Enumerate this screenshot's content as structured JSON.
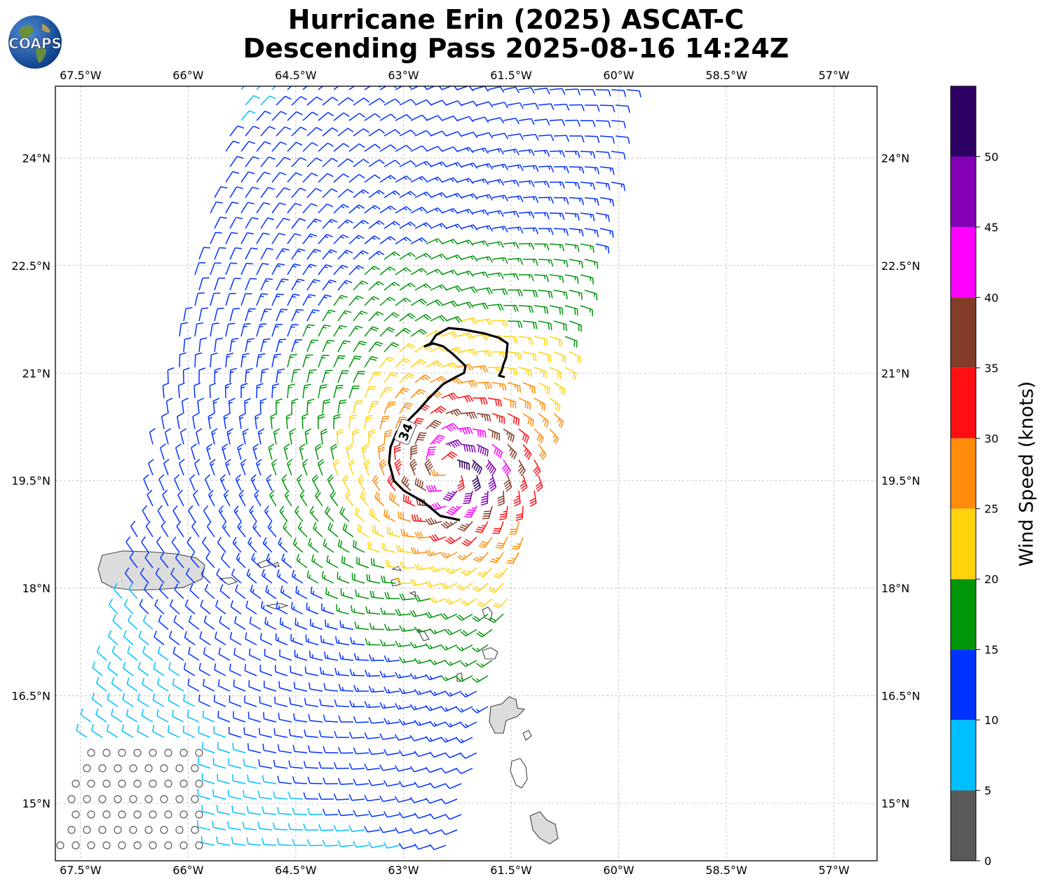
{
  "header": {
    "title_line1": "Hurricane Erin (2025) ASCAT-C",
    "title_line2": "Descending Pass 2025-08-16 14:24Z",
    "logo_text": "COAPS"
  },
  "map": {
    "lon_ticks": [
      "67.5°W",
      "66°W",
      "64.5°W",
      "63°W",
      "61.5°W",
      "60°W",
      "58.5°W",
      "57°W"
    ],
    "lat_ticks": [
      "24°N",
      "22.5°N",
      "21°N",
      "19.5°N",
      "18°N",
      "16.5°N",
      "15°N"
    ],
    "lon_range": [
      -67.85,
      -56.4
    ],
    "lat_range": [
      14.2,
      25.0
    ],
    "storm_center": {
      "lon": -62.4,
      "lat": 19.6
    },
    "contour_label": "34",
    "gridlines": true
  },
  "colorbar": {
    "label": "Wind Speed (knots)",
    "ticks": [
      "0",
      "5",
      "10",
      "15",
      "20",
      "25",
      "30",
      "35",
      "40",
      "45",
      "50"
    ],
    "bins": [
      {
        "min": 0,
        "max": 5,
        "color": "#595959"
      },
      {
        "min": 5,
        "max": 10,
        "color": "#00bfff"
      },
      {
        "min": 10,
        "max": 15,
        "color": "#0033ff"
      },
      {
        "min": 15,
        "max": 20,
        "color": "#00960a"
      },
      {
        "min": 20,
        "max": 25,
        "color": "#ffd30f"
      },
      {
        "min": 25,
        "max": 30,
        "color": "#ff8c0a"
      },
      {
        "min": 30,
        "max": 35,
        "color": "#ff0f14"
      },
      {
        "min": 35,
        "max": 40,
        "color": "#823c28"
      },
      {
        "min": 40,
        "max": 45,
        "color": "#ff00ff"
      },
      {
        "min": 45,
        "max": 50,
        "color": "#8200b4"
      },
      {
        "min": 50,
        "max": 55,
        "color": "#2d0064"
      }
    ]
  }
}
